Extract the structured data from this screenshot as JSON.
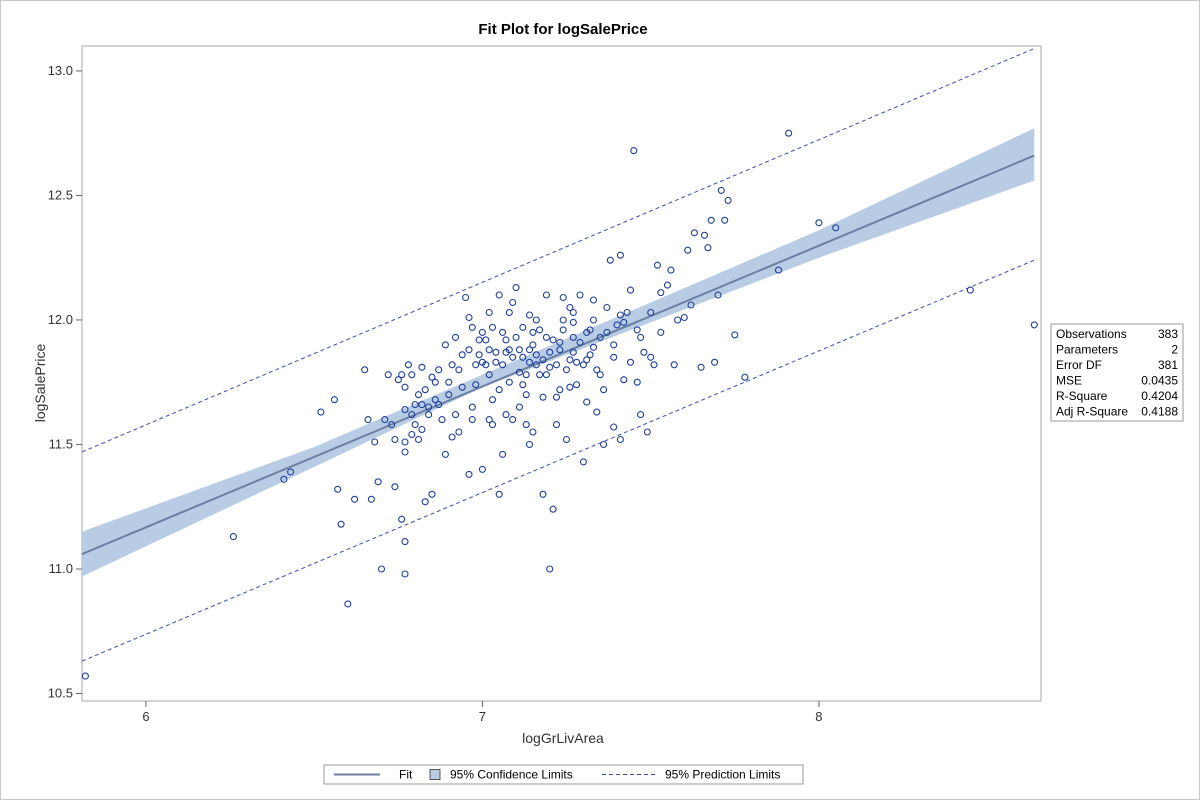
{
  "chart_data": {
    "type": "scatter",
    "title": "Fit Plot for logSalePrice",
    "xlabel": "logGrLivArea",
    "ylabel": "logSalePrice",
    "xlim": [
      5.81,
      8.66
    ],
    "ylim": [
      10.47,
      13.1
    ],
    "xticks": [
      6,
      7,
      8
    ],
    "yticks": [
      10.5,
      11.0,
      11.5,
      12.0,
      12.5,
      13.0
    ],
    "ytick_labels": [
      "10.5",
      "11.0",
      "11.5",
      "12.0",
      "12.5",
      "13.0"
    ],
    "grid": false,
    "fit_line": {
      "x": [
        5.81,
        8.64
      ],
      "y": [
        11.06,
        12.66
      ]
    },
    "confidence_band": {
      "x": [
        5.81,
        6.5,
        7.0,
        7.5,
        8.0,
        8.64
      ],
      "lower": [
        10.97,
        11.41,
        11.73,
        11.99,
        12.25,
        12.56
      ],
      "upper": [
        11.15,
        11.49,
        11.78,
        12.07,
        12.36,
        12.77
      ]
    },
    "prediction_limits": {
      "x": [
        5.81,
        8.64
      ],
      "lower": [
        10.63,
        12.24
      ],
      "upper": [
        11.47,
        13.09
      ]
    },
    "points": [
      [
        5.82,
        10.57
      ],
      [
        6.26,
        11.13
      ],
      [
        6.41,
        11.36
      ],
      [
        6.43,
        11.39
      ],
      [
        6.52,
        11.63
      ],
      [
        6.56,
        11.68
      ],
      [
        6.57,
        11.32
      ],
      [
        6.58,
        11.18
      ],
      [
        6.6,
        10.86
      ],
      [
        6.62,
        11.28
      ],
      [
        6.65,
        11.8
      ],
      [
        6.66,
        11.6
      ],
      [
        6.67,
        11.28
      ],
      [
        6.68,
        11.51
      ],
      [
        6.69,
        11.35
      ],
      [
        6.7,
        11.0
      ],
      [
        6.71,
        11.6
      ],
      [
        6.72,
        11.78
      ],
      [
        6.73,
        11.58
      ],
      [
        6.74,
        11.33
      ],
      [
        6.75,
        11.76
      ],
      [
        6.76,
        11.2
      ],
      [
        6.77,
        11.51
      ],
      [
        6.77,
        11.11
      ],
      [
        6.77,
        10.98
      ],
      [
        6.77,
        11.64
      ],
      [
        6.77,
        11.73
      ],
      [
        6.77,
        11.47
      ],
      [
        6.78,
        11.82
      ],
      [
        6.79,
        11.78
      ],
      [
        6.8,
        11.58
      ],
      [
        6.81,
        11.52
      ],
      [
        6.82,
        11.66
      ],
      [
        6.82,
        11.81
      ],
      [
        6.83,
        11.27
      ],
      [
        6.83,
        11.72
      ],
      [
        6.84,
        11.65
      ],
      [
        6.85,
        11.3
      ],
      [
        6.86,
        11.68
      ],
      [
        6.87,
        11.8
      ],
      [
        6.88,
        11.6
      ],
      [
        6.89,
        11.9
      ],
      [
        6.89,
        11.46
      ],
      [
        6.9,
        11.7
      ],
      [
        6.91,
        11.82
      ],
      [
        6.92,
        11.62
      ],
      [
        6.93,
        11.55
      ],
      [
        6.94,
        11.86
      ],
      [
        6.95,
        12.09
      ],
      [
        6.96,
        11.38
      ],
      [
        6.97,
        11.65
      ],
      [
        6.98,
        11.74
      ],
      [
        6.99,
        11.92
      ],
      [
        7.0,
        11.4
      ],
      [
        7.0,
        11.95
      ],
      [
        7.01,
        11.82
      ],
      [
        7.02,
        11.6
      ],
      [
        7.03,
        11.68
      ],
      [
        7.04,
        11.87
      ],
      [
        7.05,
        11.3
      ],
      [
        7.06,
        11.46
      ],
      [
        7.07,
        11.92
      ],
      [
        7.08,
        11.75
      ],
      [
        7.09,
        12.07
      ],
      [
        7.1,
        12.13
      ],
      [
        7.11,
        11.65
      ],
      [
        7.12,
        11.85
      ],
      [
        7.13,
        11.78
      ],
      [
        7.14,
        11.5
      ],
      [
        7.15,
        11.95
      ],
      [
        7.16,
        12.0
      ],
      [
        7.17,
        11.78
      ],
      [
        7.18,
        11.3
      ],
      [
        7.19,
        11.93
      ],
      [
        7.2,
        11.0
      ],
      [
        7.21,
        11.24
      ],
      [
        7.22,
        11.82
      ],
      [
        7.23,
        11.72
      ],
      [
        7.24,
        12.0
      ],
      [
        7.25,
        11.52
      ],
      [
        7.26,
        12.05
      ],
      [
        7.27,
        11.93
      ],
      [
        7.28,
        11.83
      ],
      [
        7.29,
        12.1
      ],
      [
        7.3,
        11.43
      ],
      [
        7.31,
        11.95
      ],
      [
        7.32,
        11.86
      ],
      [
        7.33,
        12.0
      ],
      [
        7.34,
        11.63
      ],
      [
        7.35,
        11.78
      ],
      [
        7.36,
        11.5
      ],
      [
        7.37,
        12.05
      ],
      [
        7.38,
        12.24
      ],
      [
        7.39,
        11.85
      ],
      [
        7.4,
        11.98
      ],
      [
        7.41,
        12.26
      ],
      [
        7.42,
        11.76
      ],
      [
        7.43,
        12.03
      ],
      [
        7.44,
        12.12
      ],
      [
        7.45,
        12.68
      ],
      [
        7.46,
        11.75
      ],
      [
        7.47,
        11.93
      ],
      [
        7.48,
        11.87
      ],
      [
        7.49,
        11.55
      ],
      [
        7.5,
        11.85
      ],
      [
        7.51,
        11.82
      ],
      [
        7.52,
        12.22
      ],
      [
        7.53,
        11.95
      ],
      [
        7.55,
        12.14
      ],
      [
        7.56,
        12.2
      ],
      [
        7.57,
        11.82
      ],
      [
        7.6,
        12.01
      ],
      [
        7.61,
        12.28
      ],
      [
        7.63,
        12.35
      ],
      [
        7.65,
        11.81
      ],
      [
        7.66,
        12.34
      ],
      [
        7.67,
        12.29
      ],
      [
        7.68,
        12.4
      ],
      [
        7.69,
        11.83
      ],
      [
        7.7,
        12.1
      ],
      [
        7.71,
        12.52
      ],
      [
        7.72,
        12.4
      ],
      [
        7.73,
        12.48
      ],
      [
        7.75,
        11.94
      ],
      [
        7.78,
        11.77
      ],
      [
        7.88,
        12.2
      ],
      [
        7.91,
        12.75
      ],
      [
        8.0,
        12.39
      ],
      [
        8.05,
        12.37
      ],
      [
        8.45,
        12.12
      ],
      [
        8.64,
        11.98
      ],
      [
        6.9,
        11.75
      ],
      [
        6.92,
        11.93
      ],
      [
        6.96,
        11.88
      ],
      [
        6.98,
        11.82
      ],
      [
        7.0,
        11.83
      ],
      [
        7.01,
        11.92
      ],
      [
        7.02,
        11.78
      ],
      [
        7.04,
        11.83
      ],
      [
        7.05,
        11.72
      ],
      [
        7.06,
        11.95
      ],
      [
        7.08,
        11.88
      ],
      [
        7.09,
        11.85
      ],
      [
        7.11,
        11.79
      ],
      [
        7.12,
        11.97
      ],
      [
        7.13,
        11.7
      ],
      [
        7.14,
        11.88
      ],
      [
        7.15,
        11.9
      ],
      [
        7.16,
        11.82
      ],
      [
        7.17,
        11.96
      ],
      [
        7.18,
        11.84
      ],
      [
        7.19,
        11.78
      ],
      [
        7.2,
        11.87
      ],
      [
        7.21,
        11.92
      ],
      [
        7.22,
        11.69
      ],
      [
        7.23,
        11.88
      ],
      [
        7.24,
        11.96
      ],
      [
        7.25,
        11.8
      ],
      [
        7.26,
        11.84
      ],
      [
        7.27,
        11.99
      ],
      [
        7.28,
        11.74
      ],
      [
        7.29,
        11.91
      ],
      [
        7.31,
        11.84
      ],
      [
        7.32,
        11.96
      ],
      [
        7.33,
        11.89
      ],
      [
        7.34,
        11.8
      ],
      [
        7.35,
        11.93
      ],
      [
        6.97,
        11.97
      ],
      [
        7.03,
        11.97
      ],
      [
        7.07,
        11.87
      ],
      [
        7.1,
        11.93
      ],
      [
        7.12,
        11.74
      ],
      [
        7.14,
        11.83
      ],
      [
        6.93,
        11.8
      ],
      [
        6.99,
        11.86
      ],
      [
        7.02,
        11.88
      ],
      [
        7.06,
        11.82
      ],
      [
        7.11,
        11.88
      ],
      [
        7.16,
        11.86
      ],
      [
        7.2,
        11.81
      ],
      [
        7.23,
        11.91
      ],
      [
        7.27,
        11.87
      ],
      [
        7.3,
        11.82
      ],
      [
        6.94,
        11.73
      ],
      [
        6.86,
        11.75
      ],
      [
        6.84,
        11.62
      ],
      [
        6.81,
        11.7
      ],
      [
        6.8,
        11.66
      ],
      [
        6.79,
        11.62
      ],
      [
        6.82,
        11.56
      ],
      [
        6.87,
        11.66
      ],
      [
        6.76,
        11.78
      ],
      [
        6.85,
        11.77
      ],
      [
        7.07,
        11.62
      ],
      [
        7.13,
        11.58
      ],
      [
        7.18,
        11.69
      ],
      [
        7.22,
        11.58
      ],
      [
        7.26,
        11.73
      ],
      [
        7.31,
        11.67
      ],
      [
        7.36,
        11.72
      ],
      [
        7.39,
        11.9
      ],
      [
        7.42,
        11.99
      ],
      [
        7.44,
        11.83
      ],
      [
        7.37,
        11.95
      ],
      [
        7.41,
        12.02
      ],
      [
        7.33,
        12.08
      ],
      [
        7.27,
        12.03
      ],
      [
        7.24,
        12.09
      ],
      [
        7.19,
        12.1
      ],
      [
        7.14,
        12.02
      ],
      [
        7.08,
        12.03
      ],
      [
        7.05,
        12.1
      ],
      [
        7.02,
        12.03
      ],
      [
        6.96,
        12.01
      ],
      [
        7.41,
        11.52
      ],
      [
        7.47,
        11.62
      ],
      [
        7.39,
        11.57
      ],
      [
        7.15,
        11.55
      ],
      [
        7.09,
        11.6
      ],
      [
        7.03,
        11.58
      ],
      [
        6.97,
        11.6
      ],
      [
        6.91,
        11.53
      ],
      [
        6.79,
        11.54
      ],
      [
        6.74,
        11.52
      ],
      [
        7.46,
        11.96
      ],
      [
        7.5,
        12.03
      ],
      [
        7.53,
        12.11
      ],
      [
        7.58,
        12.0
      ],
      [
        7.62,
        12.06
      ]
    ]
  },
  "stats_box": {
    "rows": [
      {
        "label": "Observations",
        "value": "383"
      },
      {
        "label": "Parameters",
        "value": "2"
      },
      {
        "label": "Error DF",
        "value": "381"
      },
      {
        "label": "MSE",
        "value": "0.0435"
      },
      {
        "label": "R-Square",
        "value": "0.4204"
      },
      {
        "label": "Adj R-Square",
        "value": "0.4188"
      }
    ]
  },
  "legend": {
    "fit": "Fit",
    "confidence": "95% Confidence Limits",
    "prediction": "95% Prediction Limits"
  },
  "colors": {
    "marker": "#1f3f99",
    "fit_line": "#6b7fa3",
    "band": "#b8cce4",
    "prediction": "#3a4fa8",
    "frame": "#a8a8a8"
  }
}
